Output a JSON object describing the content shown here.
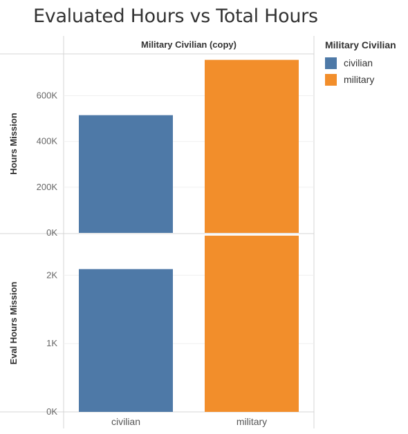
{
  "title": "Evaluated Hours vs Total Hours",
  "column_header": "Military Civilian (copy)",
  "legend": {
    "title": "Military Civilian",
    "items": [
      {
        "label": "civilian",
        "color": "#4e79a7"
      },
      {
        "label": "military",
        "color": "#f28e2b"
      }
    ]
  },
  "chart_data": {
    "type": "bar",
    "categories": [
      "civilian",
      "military"
    ],
    "panels": [
      {
        "ylabel": "Hours Mission",
        "values": [
          515000,
          757000
        ],
        "ylim": [
          0,
          780000
        ],
        "ticks": [
          0,
          200000,
          400000,
          600000
        ],
        "tick_labels": [
          "0K",
          "200K",
          "400K",
          "600K"
        ]
      },
      {
        "ylabel": "Eval Hours Mission",
        "values": [
          2090,
          2580
        ],
        "ylim": [
          0,
          2600
        ],
        "ticks": [
          0,
          1000,
          2000
        ],
        "tick_labels": [
          "0K",
          "1K",
          "2K"
        ]
      }
    ],
    "colors": [
      "#4e79a7",
      "#f28e2b"
    ],
    "grid": true,
    "legend_position": "right"
  }
}
